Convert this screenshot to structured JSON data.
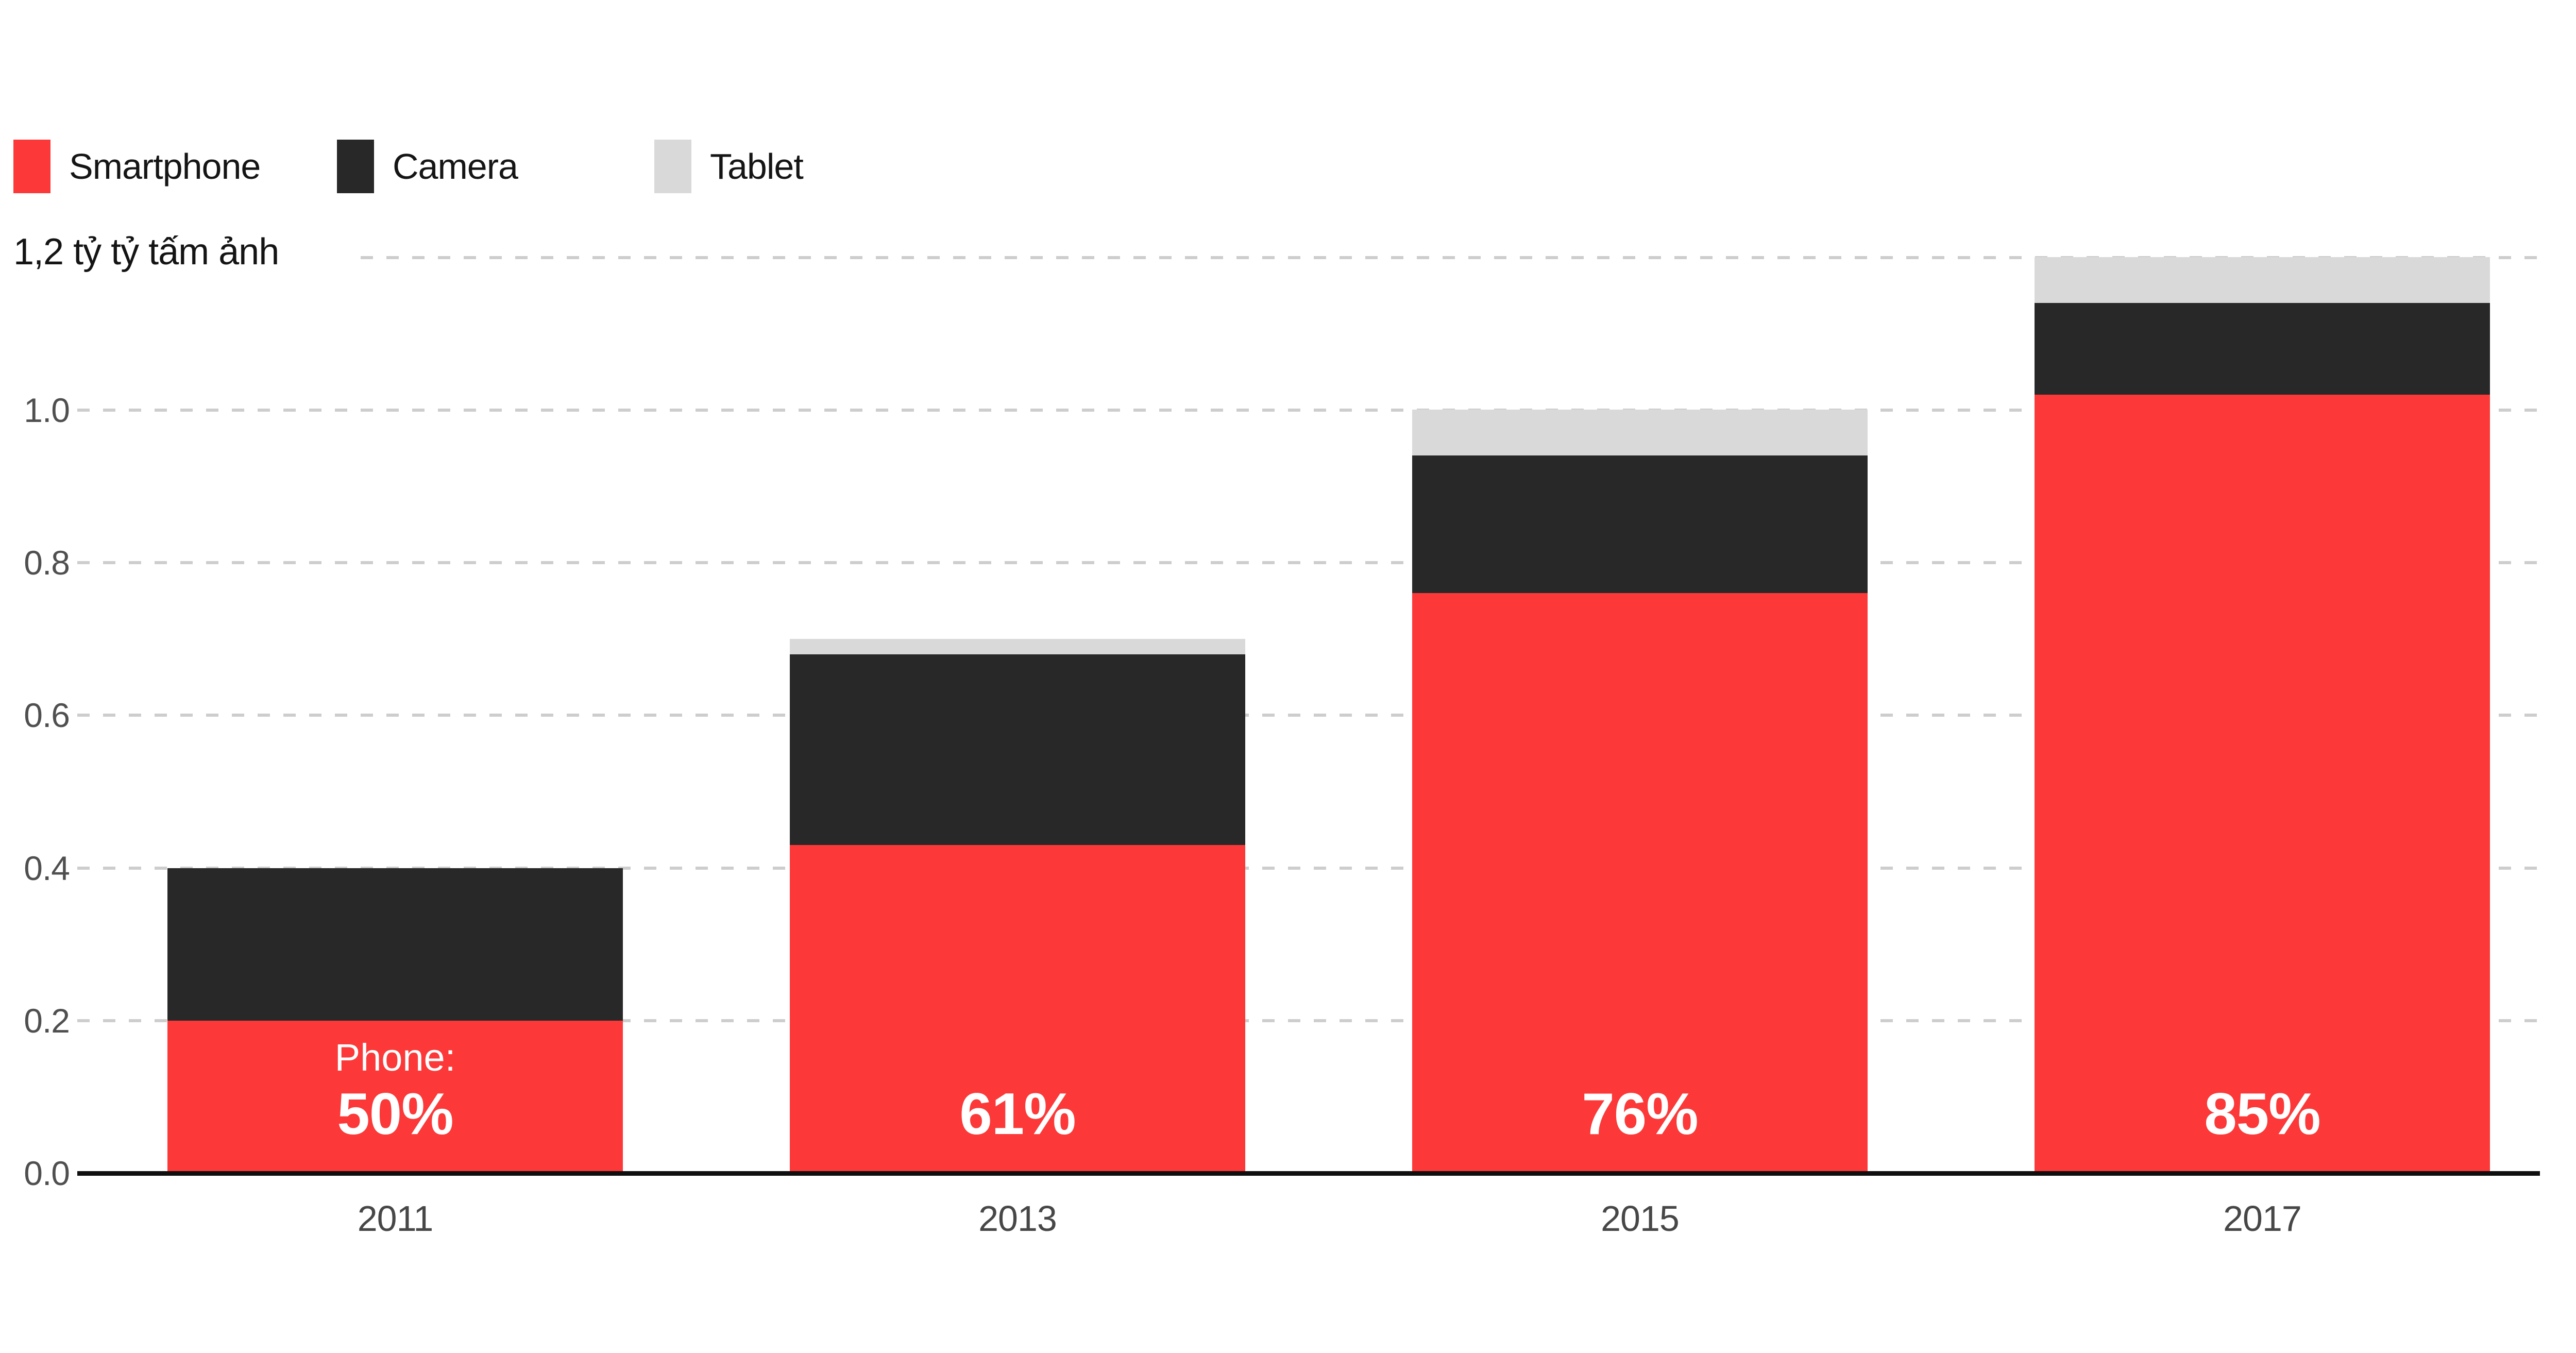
{
  "title": "1,2 tỷ tỷ tấm ảnh",
  "legend": {
    "items": [
      {
        "label": "Smartphone",
        "color": "#fc3838"
      },
      {
        "label": "Camera",
        "color": "#282828"
      },
      {
        "label": "Tablet",
        "color": "#d9d9d9"
      }
    ]
  },
  "y_axis": {
    "ticks": [
      {
        "label": "1.0",
        "value": 1.0
      },
      {
        "label": "0.8",
        "value": 0.8
      },
      {
        "label": "0.6",
        "value": 0.6
      },
      {
        "label": "0.4",
        "value": 0.4
      },
      {
        "label": "0.2",
        "value": 0.2
      },
      {
        "label": "0.0",
        "value": 0.0
      }
    ],
    "top_gridline_value": 1.2
  },
  "chart_data": {
    "type": "bar",
    "stacked": true,
    "title": "1,2 tỷ tỷ tấm ảnh",
    "unit": "tỷ tỷ tấm ảnh (trillions of photos)",
    "categories": [
      "2011",
      "2013",
      "2015",
      "2017"
    ],
    "series": [
      {
        "name": "Smartphone",
        "color": "#fc3838",
        "values": [
          0.2,
          0.43,
          0.76,
          1.02
        ]
      },
      {
        "name": "Camera",
        "color": "#282828",
        "values": [
          0.2,
          0.25,
          0.18,
          0.12
        ]
      },
      {
        "name": "Tablet",
        "color": "#d9d9d9",
        "values": [
          0.0,
          0.02,
          0.06,
          0.06
        ]
      }
    ],
    "totals": [
      0.4,
      0.7,
      1.0,
      1.2
    ],
    "bar_labels": [
      {
        "prefix": "Phone:",
        "pct": "50%"
      },
      {
        "prefix": "",
        "pct": "61%"
      },
      {
        "prefix": "",
        "pct": "76%"
      },
      {
        "prefix": "",
        "pct": "85%"
      }
    ],
    "xlabel": "",
    "ylabel": "",
    "ylim": [
      0,
      1.2
    ],
    "grid": "horizontal-dashed",
    "legend_position": "top-left",
    "colors": {
      "gridline": "#cdcdcd",
      "axis_line": "#0f0f0f",
      "tick_text": "#4f4f4f",
      "category_text": "#474747",
      "bar_value_text": "#ffffff",
      "background": "#ffffff"
    }
  }
}
